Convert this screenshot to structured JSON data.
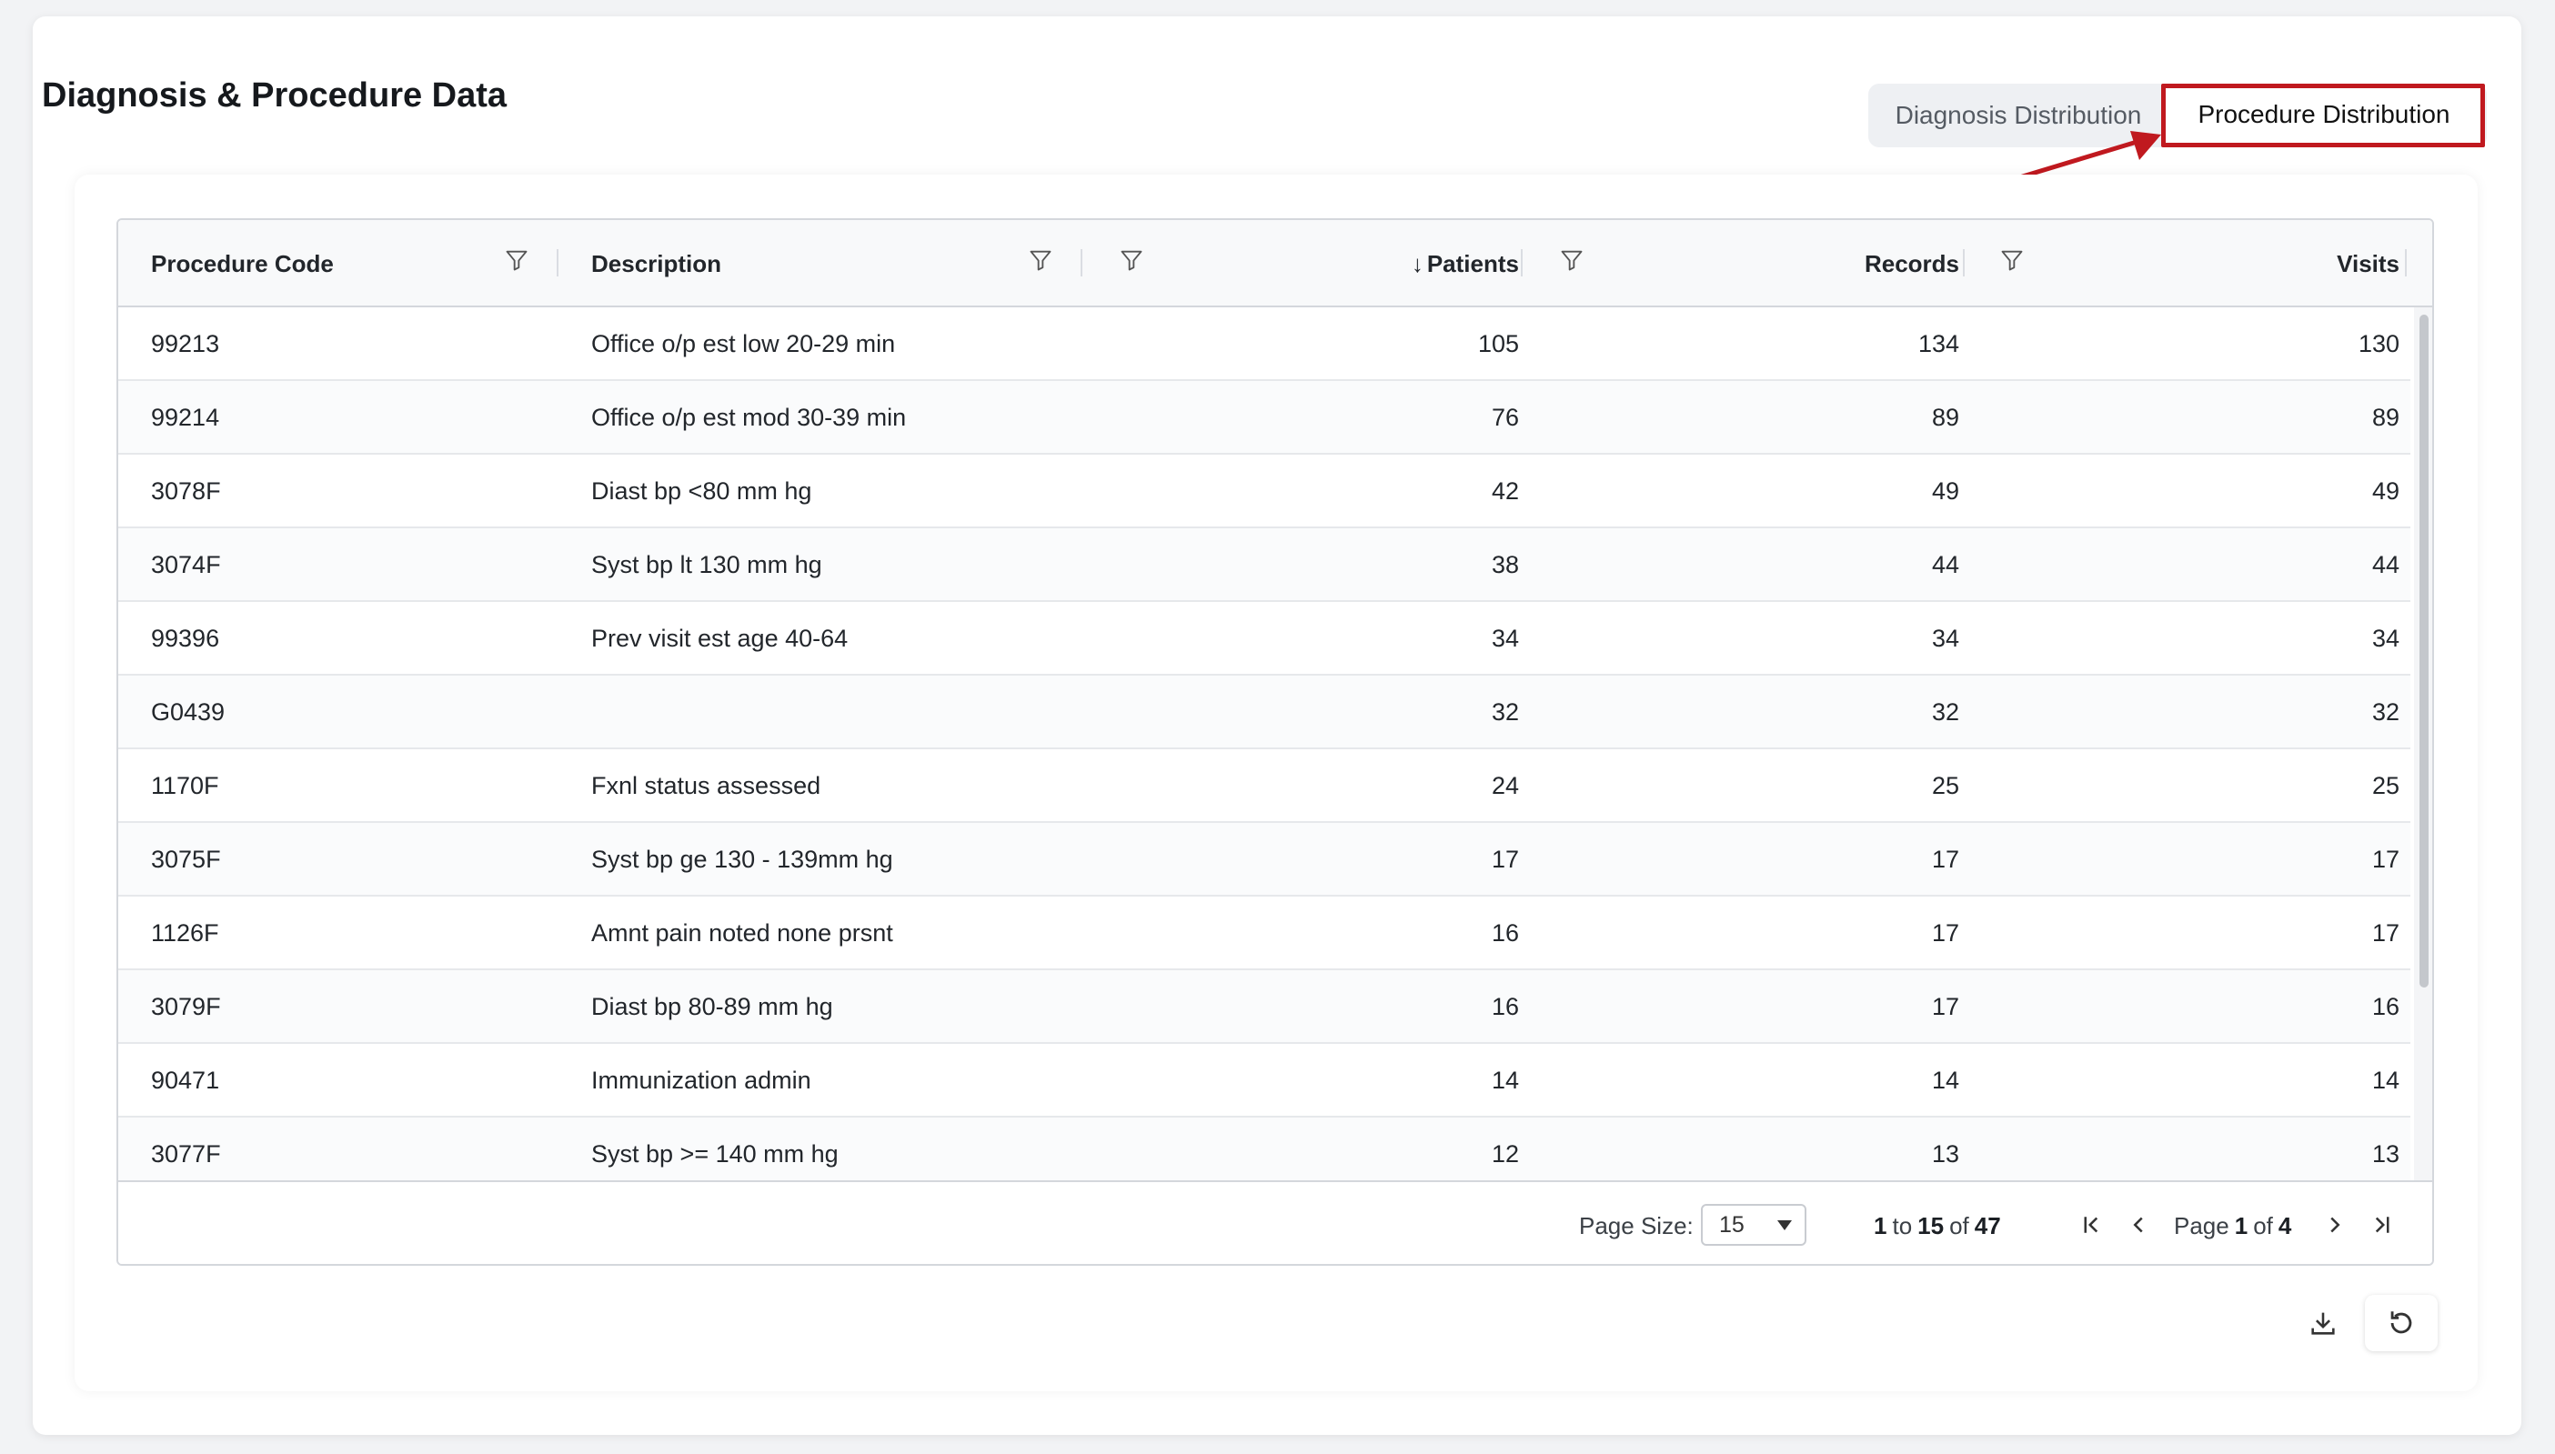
{
  "header": {
    "title": "Diagnosis & Procedure Data"
  },
  "tabs": [
    {
      "label": "Diagnosis Distribution",
      "active": false
    },
    {
      "label": "Procedure Distribution",
      "active": true
    }
  ],
  "grid": {
    "columns": {
      "code": "Procedure Code",
      "description": "Description",
      "patients": "Patients",
      "patients_sort": "↓",
      "records": "Records",
      "visits": "Visits"
    },
    "rows": [
      {
        "code": "99213",
        "description": "Office o/p est low 20-29 min",
        "patients": "105",
        "records": "134",
        "visits": "130"
      },
      {
        "code": "99214",
        "description": "Office o/p est mod 30-39 min",
        "patients": "76",
        "records": "89",
        "visits": "89"
      },
      {
        "code": "3078F",
        "description": "Diast bp <80 mm hg",
        "patients": "42",
        "records": "49",
        "visits": "49"
      },
      {
        "code": "3074F",
        "description": "Syst bp lt 130 mm hg",
        "patients": "38",
        "records": "44",
        "visits": "44"
      },
      {
        "code": "99396",
        "description": "Prev visit est age 40-64",
        "patients": "34",
        "records": "34",
        "visits": "34"
      },
      {
        "code": "G0439",
        "description": "",
        "patients": "32",
        "records": "32",
        "visits": "32"
      },
      {
        "code": "1170F",
        "description": "Fxnl status assessed",
        "patients": "24",
        "records": "25",
        "visits": "25"
      },
      {
        "code": "3075F",
        "description": "Syst bp ge 130 - 139mm hg",
        "patients": "17",
        "records": "17",
        "visits": "17"
      },
      {
        "code": "1126F",
        "description": "Amnt pain noted none prsnt",
        "patients": "16",
        "records": "17",
        "visits": "17"
      },
      {
        "code": "3079F",
        "description": "Diast bp 80-89 mm hg",
        "patients": "16",
        "records": "17",
        "visits": "16"
      },
      {
        "code": "90471",
        "description": "Immunization admin",
        "patients": "14",
        "records": "14",
        "visits": "14"
      },
      {
        "code": "3077F",
        "description": "Syst bp >= 140 mm hg",
        "patients": "12",
        "records": "13",
        "visits": "13"
      }
    ]
  },
  "pagination": {
    "page_size_label": "Page Size:",
    "page_size": "15",
    "range_from": "1",
    "range_to_label": "to",
    "range_to": "15",
    "range_of_label": "of",
    "total": "47",
    "page_label": "Page",
    "page": "1",
    "page_of_label": "of",
    "page_total": "4"
  },
  "icons": {
    "filter": "filter-icon",
    "download": "download-icon",
    "reset": "refresh-icon",
    "first": "first-page-icon",
    "prev": "prev-page-icon",
    "next": "next-page-icon",
    "last": "last-page-icon"
  },
  "colors": {
    "highlight": "#c0191f"
  }
}
